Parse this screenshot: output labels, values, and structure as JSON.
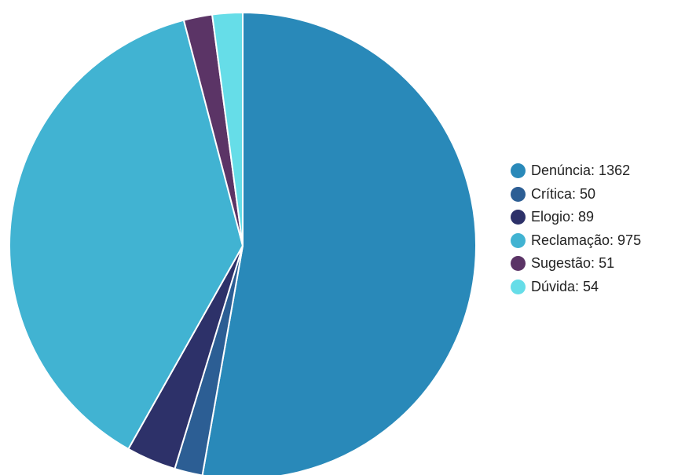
{
  "chart_data": {
    "type": "pie",
    "title": "",
    "legend_position": "right",
    "slices": [
      {
        "label": "Denúncia",
        "value": 1362,
        "legend_text": "Denúncia: 1362",
        "color": "#2989b9"
      },
      {
        "label": "Crítica",
        "value": 50,
        "legend_text": "Crítica: 50",
        "color": "#2c5e94"
      },
      {
        "label": "Elogio",
        "value": 89,
        "legend_text": "Elogio: 89",
        "color": "#2d3169"
      },
      {
        "label": "Reclamação",
        "value": 975,
        "legend_text": "Reclamação: 975",
        "color": "#41b3d2"
      },
      {
        "label": "Sugestão",
        "value": 51,
        "legend_text": "Sugestão: 51",
        "color": "#5b3466"
      },
      {
        "label": "Dúvida",
        "value": 54,
        "legend_text": "Dúvida: 54",
        "color": "#66dde8"
      }
    ]
  }
}
